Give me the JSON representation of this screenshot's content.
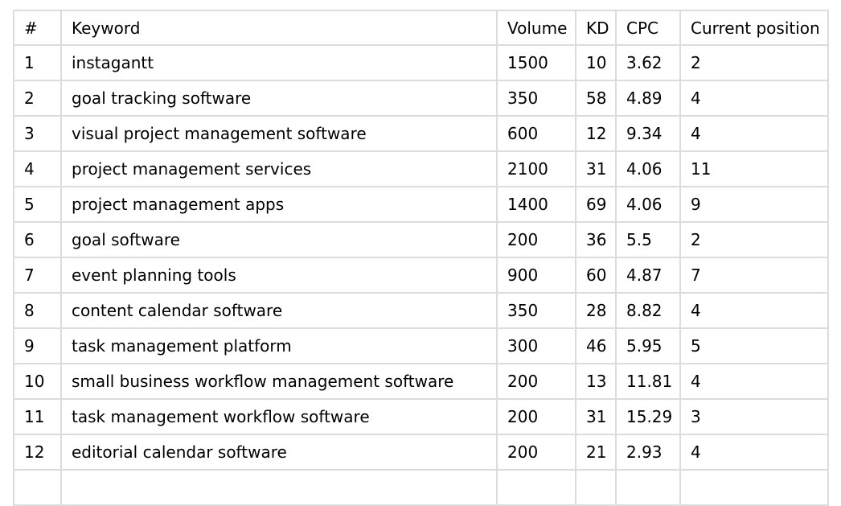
{
  "table": {
    "columns": [
      "#",
      "Keyword",
      "Volume",
      "KD",
      "CPC",
      "Current position"
    ],
    "rows": [
      [
        "1",
        "instagantt",
        "1500",
        "10",
        "3.62",
        "2"
      ],
      [
        "2",
        "goal tracking software",
        "350",
        "58",
        "4.89",
        "4"
      ],
      [
        "3",
        "visual project management software",
        "600",
        "12",
        "9.34",
        "4"
      ],
      [
        "4",
        "project management services",
        "2100",
        "31",
        "4.06",
        "11"
      ],
      [
        "5",
        "project management apps",
        "1400",
        "69",
        "4.06",
        "9"
      ],
      [
        "6",
        "goal software",
        "200",
        "36",
        "5.5",
        "2"
      ],
      [
        "7",
        "event planning tools",
        "900",
        "60",
        "4.87",
        "7"
      ],
      [
        "8",
        "content calendar software",
        "350",
        "28",
        "8.82",
        "4"
      ],
      [
        "9",
        "task management platform",
        "300",
        "46",
        "5.95",
        "5"
      ],
      [
        "10",
        "small business workflow management software",
        "200",
        "13",
        "11.81",
        "4"
      ],
      [
        "11",
        "task management workflow software",
        "200",
        "31",
        "15.29",
        "3"
      ],
      [
        "12",
        "editorial calendar software",
        "200",
        "21",
        "2.93",
        "4"
      ]
    ],
    "partial_row": [
      "",
      "",
      "",
      "",
      "",
      ""
    ]
  },
  "colors": {
    "background": "#ffffff",
    "border": "#dcdcdc",
    "text": "#000000"
  }
}
